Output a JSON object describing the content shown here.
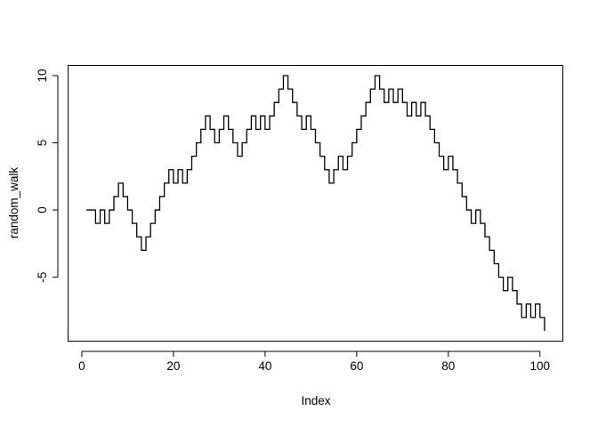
{
  "chart_data": {
    "type": "line",
    "step": true,
    "title": "",
    "xlabel": "Index",
    "ylabel": "random_walk",
    "xlim": [
      1,
      101
    ],
    "ylim": [
      -9,
      10
    ],
    "xticks": [
      0,
      20,
      40,
      60,
      80,
      100
    ],
    "yticks": [
      -5,
      0,
      5,
      10
    ],
    "grid": false,
    "series": [
      {
        "x": [
          1,
          2,
          3,
          4,
          5,
          6,
          7,
          8,
          9,
          10,
          11,
          12,
          13,
          14,
          15,
          16,
          17,
          18,
          19,
          20,
          21,
          22,
          23,
          24,
          25,
          26,
          27,
          28,
          29,
          30,
          31,
          32,
          33,
          34,
          35,
          36,
          37,
          38,
          39,
          40,
          41,
          42,
          43,
          44,
          45,
          46,
          47,
          48,
          49,
          50,
          51,
          52,
          53,
          54,
          55,
          56,
          57,
          58,
          59,
          60,
          61,
          62,
          63,
          64,
          65,
          66,
          67,
          68,
          69,
          70,
          71,
          72,
          73,
          74,
          75,
          76,
          77,
          78,
          79,
          80,
          81,
          82,
          83,
          84,
          85,
          86,
          87,
          88,
          89,
          90,
          91,
          92,
          93,
          94,
          95,
          96,
          97,
          98,
          99,
          100,
          101
        ],
        "values": [
          0,
          0,
          -1,
          0,
          -1,
          0,
          1,
          2,
          1,
          0,
          -1,
          -2,
          -3,
          -2,
          -1,
          0,
          1,
          2,
          3,
          2,
          3,
          2,
          3,
          4,
          5,
          6,
          7,
          6,
          5,
          6,
          7,
          6,
          5,
          4,
          5,
          6,
          7,
          6,
          7,
          6,
          7,
          8,
          9,
          10,
          9,
          8,
          7,
          6,
          7,
          6,
          5,
          4,
          3,
          2,
          3,
          4,
          3,
          4,
          5,
          6,
          7,
          8,
          9,
          10,
          9,
          8,
          9,
          8,
          9,
          8,
          7,
          8,
          7,
          8,
          7,
          6,
          5,
          4,
          3,
          4,
          3,
          2,
          1,
          0,
          -1,
          0,
          -1,
          -2,
          -3,
          -4,
          -5,
          -6,
          -5,
          -6,
          -7,
          -8,
          -7,
          -8,
          -7,
          -8,
          -9
        ]
      }
    ]
  }
}
